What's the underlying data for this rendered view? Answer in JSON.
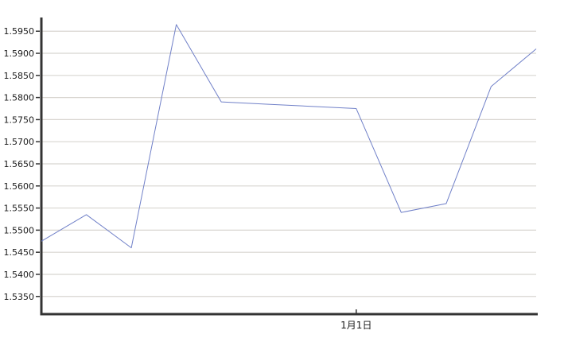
{
  "chart_data": {
    "type": "line",
    "title": "",
    "values": [
      1.5475,
      1.5535,
      1.546,
      1.5965,
      1.579,
      1.5785,
      1.578,
      1.5775,
      1.554,
      1.556,
      1.5825,
      1.591
    ],
    "x_count": 12,
    "x_ticks": [
      {
        "index": 7,
        "label": "1月1日"
      }
    ],
    "y_tick_labels": [
      "1.5350",
      "1.5400",
      "1.5450",
      "1.5500",
      "1.5550",
      "1.5600",
      "1.5650",
      "1.5700",
      "1.5750",
      "1.5800",
      "1.5850",
      "1.5900",
      "1.5950"
    ],
    "ylim": [
      1.531,
      1.5981
    ],
    "grid": true,
    "legend_position": "none",
    "colors": {
      "line": "#7080c8",
      "grid": "#d8d5d0",
      "axis": "#333333",
      "tick_text": "#1a1a1a",
      "background": "#ffffff"
    }
  }
}
